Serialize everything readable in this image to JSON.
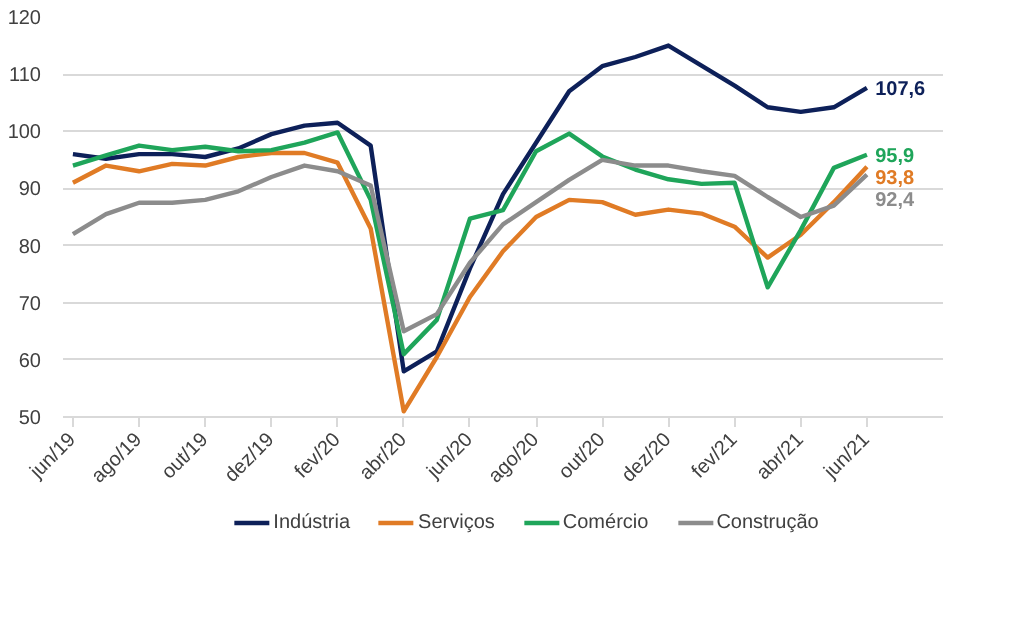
{
  "chart_data": {
    "type": "line",
    "categories": [
      "jun/19",
      null,
      "ago/19",
      null,
      "out/19",
      null,
      "dez/19",
      null,
      "fev/20",
      null,
      "abr/20",
      null,
      "jun/20",
      null,
      "ago/20",
      null,
      "out/20",
      null,
      "dez/20",
      null,
      "fev/21",
      null,
      "abr/21",
      null,
      "jun/21"
    ],
    "series": [
      {
        "name": "Indústria",
        "color": "#0d2059",
        "values": [
          96,
          95.2,
          96,
          96,
          95.5,
          97,
          99.5,
          101,
          101.5,
          97.5,
          58,
          61.5,
          76,
          89,
          98,
          107,
          111.4,
          113,
          115,
          111.5,
          108,
          104.2,
          103.4,
          104.2,
          107.6
        ],
        "value_labels": [
          null,
          null,
          null,
          null,
          null,
          null,
          null,
          null,
          null,
          null,
          null,
          null,
          null,
          null,
          null,
          null,
          null,
          null,
          null,
          null,
          null,
          null,
          null,
          null,
          "107,6"
        ]
      },
      {
        "name": "Serviços",
        "color": "#e07b25",
        "values": [
          91,
          94,
          93,
          94.3,
          94,
          95.5,
          96.2,
          96.2,
          94.5,
          83,
          51,
          60.5,
          71,
          79,
          85,
          88,
          87.6,
          85.4,
          86.3,
          85.6,
          83.3,
          77.9,
          81.9,
          87.6,
          93.8
        ],
        "value_labels": [
          null,
          null,
          null,
          null,
          null,
          null,
          null,
          null,
          null,
          null,
          null,
          null,
          null,
          null,
          null,
          null,
          null,
          null,
          null,
          null,
          null,
          null,
          null,
          null,
          "93,8"
        ]
      },
      {
        "name": "Comércio",
        "color": "#1fa55a",
        "values": [
          94,
          95.8,
          97.5,
          96.7,
          97.3,
          96.5,
          96.7,
          98,
          99.8,
          88,
          61,
          67,
          84.7,
          86.2,
          96.5,
          99.6,
          95.6,
          93.3,
          91.6,
          90.8,
          91,
          72.7,
          82.7,
          93.6,
          95.9
        ],
        "value_labels": [
          null,
          null,
          null,
          null,
          null,
          null,
          null,
          null,
          null,
          null,
          null,
          null,
          null,
          null,
          null,
          null,
          null,
          null,
          null,
          null,
          null,
          null,
          null,
          null,
          "95,9"
        ]
      },
      {
        "name": "Construção",
        "color": "#8c8c8c",
        "values": [
          82,
          85.5,
          87.5,
          87.5,
          88,
          89.5,
          92,
          94,
          93,
          90.5,
          65,
          68,
          77,
          83.7,
          87.6,
          91.5,
          95,
          94,
          94,
          93,
          92.2,
          88.5,
          85,
          87,
          92.4
        ],
        "value_labels": [
          null,
          null,
          null,
          null,
          null,
          null,
          null,
          null,
          null,
          null,
          null,
          null,
          null,
          null,
          null,
          null,
          null,
          null,
          null,
          null,
          null,
          null,
          null,
          null,
          "92,4"
        ]
      }
    ],
    "ylim": [
      50,
      120
    ],
    "yticks": [
      50,
      60,
      70,
      80,
      90,
      100,
      110,
      120
    ],
    "grid": "y",
    "legend": "bottom",
    "marker": "none",
    "line_style": "solid"
  }
}
